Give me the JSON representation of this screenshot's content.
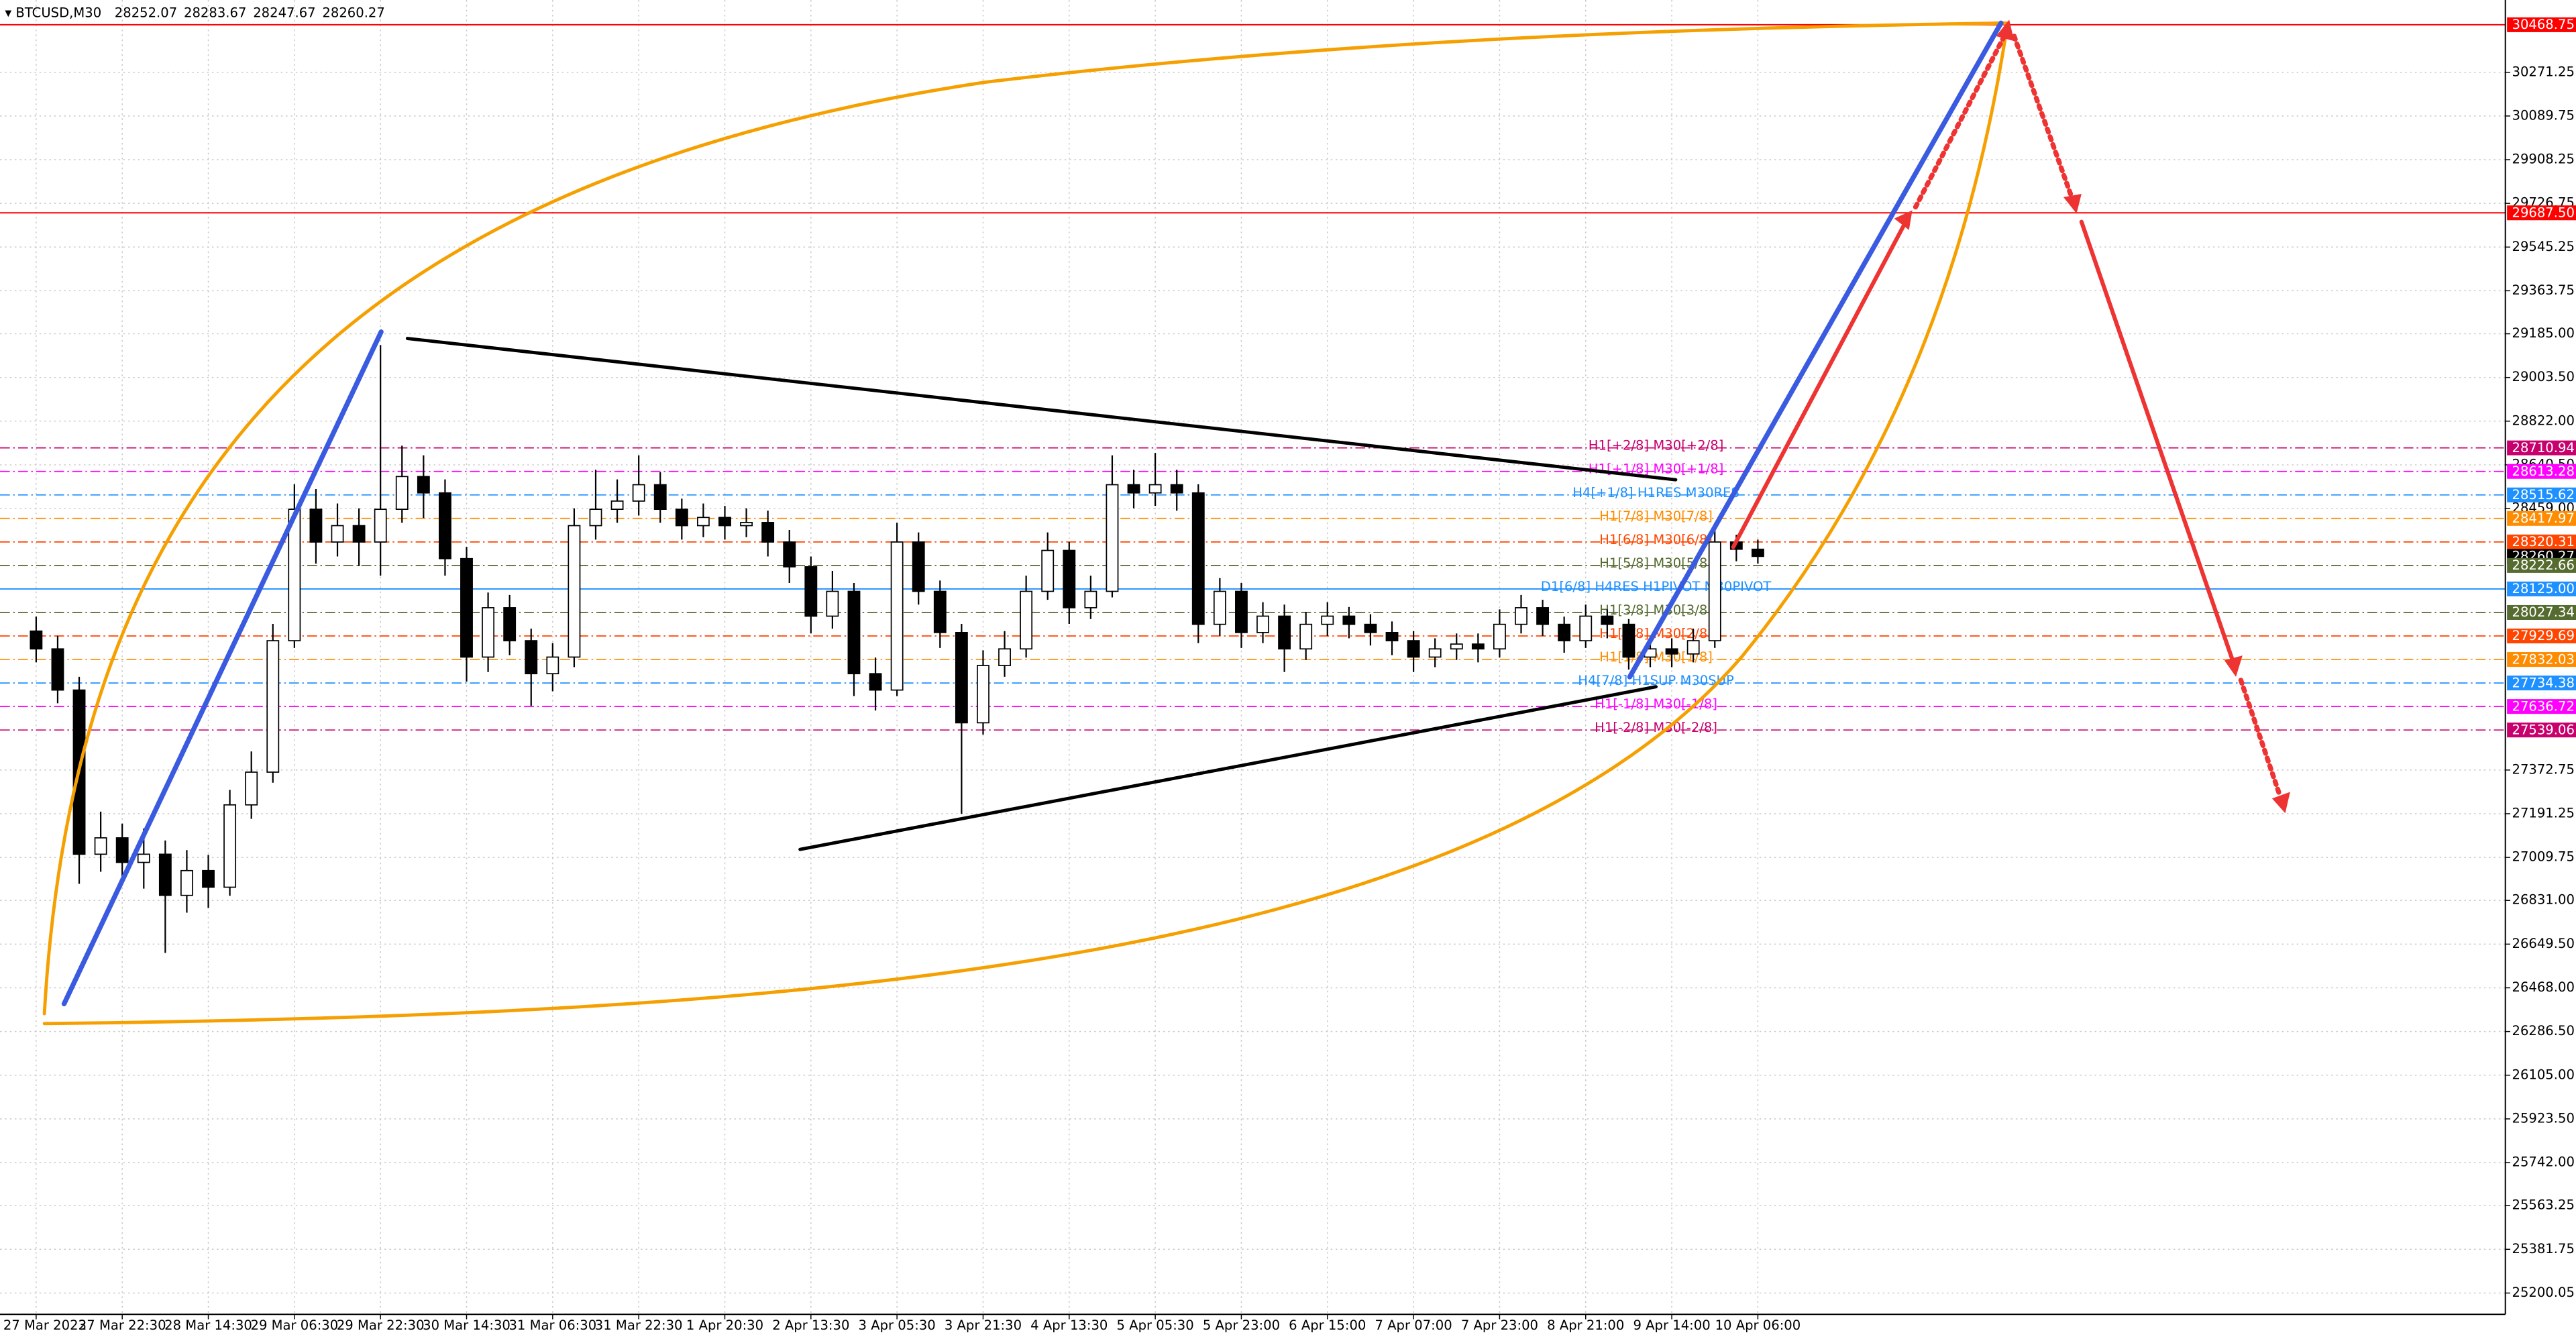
{
  "chart_data": {
    "type": "candlestick",
    "title": "BTCUSD,M30",
    "header_ohlc": [
      28252.07,
      28283.67,
      28247.67,
      28260.27
    ],
    "categories": [
      "27 Mar 2023",
      null,
      null,
      null,
      "27 Mar 22:30",
      null,
      null,
      null,
      "28 Mar 14:30",
      null,
      null,
      null,
      "29 Mar 06:30",
      null,
      null,
      null,
      "29 Mar 22:30",
      null,
      null,
      null,
      "30 Mar 14:30",
      null,
      null,
      null,
      "31 Mar 06:30",
      null,
      null,
      null,
      "31 Mar 22:30",
      null,
      null,
      null,
      "1 Apr 20:30",
      null,
      null,
      null,
      "2 Apr 13:30",
      null,
      null,
      null,
      "3 Apr 05:30",
      null,
      null,
      null,
      "3 Apr 21:30",
      null,
      null,
      null,
      "4 Apr 13:30",
      null,
      null,
      null,
      "5 Apr 05:30",
      null,
      null,
      null,
      "5 Apr 23:00",
      null,
      null,
      null,
      "6 Apr 15:00",
      null,
      null,
      null,
      "7 Apr 07:00",
      null,
      null,
      null,
      "7 Apr 23:00",
      null,
      null,
      null,
      "8 Apr 21:00",
      null,
      null,
      null,
      "9 Apr 14:00",
      null,
      null,
      null,
      "10 Apr 06:00"
    ],
    "open": [
      27950,
      27876,
      27705,
      27023,
      27091,
      26989,
      27023,
      26852,
      26955,
      26886,
      27228,
      27364,
      27910,
      28456,
      28320,
      28388,
      28320,
      28456,
      28592,
      28524,
      28251,
      27842,
      28047,
      27910,
      27773,
      27842,
      28388,
      28456,
      28490,
      28558,
      28456,
      28388,
      28422,
      28388,
      28401,
      28320,
      28217,
      28012,
      28115,
      27773,
      27705,
      28320,
      28115,
      27944,
      27569,
      27807,
      27876,
      28115,
      28285,
      28047,
      28115,
      28558,
      28524,
      28558,
      28524,
      27978,
      28115,
      27944,
      28012,
      27876,
      27978,
      28012,
      27978,
      27944,
      27910,
      27842,
      27876,
      27896,
      27876,
      27978,
      28047,
      27978,
      27910,
      28012,
      27978,
      27842,
      27876,
      27855,
      27910,
      28320,
      28290
    ],
    "high": [
      28010,
      27930,
      27760,
      27200,
      27150,
      27130,
      27080,
      27040,
      27020,
      27290,
      27450,
      27980,
      28560,
      28540,
      28480,
      28460,
      29138,
      28720,
      28680,
      28580,
      28300,
      28110,
      28100,
      27960,
      27900,
      28460,
      28620,
      28580,
      28680,
      28610,
      28500,
      28480,
      28470,
      28460,
      28450,
      28370,
      28260,
      28200,
      28150,
      27840,
      28400,
      28360,
      28160,
      27980,
      27870,
      27950,
      28180,
      28360,
      28320,
      28180,
      28680,
      28620,
      28690,
      28620,
      28560,
      28170,
      28150,
      28070,
      28060,
      28030,
      28070,
      28050,
      28020,
      27990,
      27950,
      27920,
      27940,
      27940,
      28040,
      28100,
      28080,
      28010,
      28060,
      28040,
      28000,
      27920,
      27920,
      27960,
      28400,
      28350,
      28330
    ],
    "low": [
      27820,
      27650,
      26900,
      26950,
      26900,
      26880,
      26613,
      26780,
      26800,
      26850,
      27170,
      27320,
      27880,
      28230,
      28260,
      28220,
      28180,
      28400,
      28420,
      28180,
      27740,
      27780,
      27850,
      27640,
      27700,
      27800,
      28330,
      28400,
      28430,
      28400,
      28330,
      28340,
      28330,
      28340,
      28260,
      28150,
      27940,
      27960,
      27680,
      27620,
      27680,
      28060,
      27880,
      27191,
      27520,
      27760,
      27840,
      28080,
      27980,
      28000,
      28090,
      28460,
      28470,
      28450,
      27900,
      27930,
      27880,
      27900,
      27780,
      27830,
      27930,
      27920,
      27890,
      27850,
      27780,
      27800,
      27830,
      27820,
      27840,
      27940,
      27930,
      27860,
      27880,
      27920,
      27790,
      27800,
      27800,
      27820,
      27880,
      28240,
      28230
    ],
    "close": [
      27876,
      27705,
      27023,
      27091,
      26989,
      27023,
      26852,
      26955,
      26886,
      27228,
      27364,
      27910,
      28456,
      28320,
      28388,
      28320,
      28456,
      28592,
      28524,
      28251,
      27842,
      28047,
      27910,
      27773,
      27842,
      28388,
      28456,
      28490,
      28558,
      28456,
      28388,
      28422,
      28388,
      28401,
      28320,
      28217,
      28012,
      28115,
      27773,
      27705,
      28320,
      28115,
      27944,
      27569,
      27807,
      27876,
      28115,
      28285,
      28047,
      28115,
      28558,
      28524,
      28558,
      28524,
      27978,
      28115,
      27944,
      28012,
      27876,
      27978,
      28012,
      27978,
      27944,
      27910,
      27842,
      27876,
      27896,
      27876,
      27978,
      28047,
      27978,
      27910,
      28012,
      27978,
      27842,
      27876,
      27855,
      27910,
      28320,
      28290,
      28260.27
    ],
    "ylim": [
      25111.5,
      30571.6
    ],
    "yticks": [
      30271.25,
      30089.75,
      29908.25,
      29726.75,
      29545.25,
      29363.75,
      {
        "value": 29185,
        "label": "29185.00"
      },
      {
        "value": 29003.5,
        "label": "29003.50"
      },
      {
        "value": 28822,
        "label": "28822.00"
      },
      {
        "value": 28640.5,
        "label": "28640.50"
      },
      {
        "value": 28459,
        "label": "28459.00"
      },
      27372.75,
      27191.25,
      27009.75,
      {
        "value": 26831,
        "label": "26831.00"
      },
      {
        "value": 26649.5,
        "label": "26649.50"
      },
      {
        "value": 26468,
        "label": "26468.00"
      },
      {
        "value": 26286.5,
        "label": "26286.50"
      },
      {
        "value": 26105,
        "label": "26105.00"
      },
      {
        "value": 25923.5,
        "label": "25923.50"
      },
      {
        "value": 25742,
        "label": "25742.00"
      },
      25563.25,
      25381.75,
      25200.05
    ],
    "grid": true,
    "levels": [
      {
        "value": 30468.75,
        "label": "30468.75",
        "color": "#ff0000",
        "style": "solid"
      },
      {
        "value": 29687.5,
        "label": "29687.50",
        "color": "#ff0000",
        "style": "solid"
      },
      {
        "name": "H1[+2/8] M30[+2/8]",
        "value": 28710.94,
        "label": "28710.94",
        "color": "#c8006e",
        "style": "dashdot"
      },
      {
        "name": "H1[+1/8] M30[+1/8]",
        "value": 28613.28,
        "label": "28613.28",
        "color": "#ff00ff",
        "style": "dashdot"
      },
      {
        "name": "H4[+1/8] H1RES M30RES",
        "value": 28515.62,
        "label": "28515.62",
        "color": "#1e90ff",
        "style": "dashdot"
      },
      {
        "name": "H1[7/8] M30[7/8]",
        "value": 28417.97,
        "label": "28417.97",
        "color": "#ff8c00",
        "style": "dashdot"
      },
      {
        "name": "H1[6/8] M30[6/8]",
        "value": 28320.31,
        "label": "28320.31",
        "color": "#ff4500",
        "style": "dashdot"
      },
      {
        "value": 28260.27,
        "label": "28260.27",
        "color": "#000000",
        "style": "none"
      },
      {
        "name": "H1[5/8] M30[5/8]",
        "value": 28222.66,
        "label": "28222.66",
        "color": "#556b2f",
        "style": "dashdot"
      },
      {
        "name": "D1[6/8] H4RES H1PIVOT M30PIVOT",
        "value": 28125.0,
        "label": "28125.00",
        "color": "#1e90ff",
        "style": "solid"
      },
      {
        "name": "H1[3/8] M30[3/8]",
        "value": 28027.34,
        "label": "28027.34",
        "color": "#556b2f",
        "style": "dashdot"
      },
      {
        "name": "H1[2/8] M30[2/8]",
        "value": 27929.69,
        "label": "27929.69",
        "color": "#ff4500",
        "style": "dashdot"
      },
      {
        "name": "H1[1/8] M30[1/8]",
        "value": 27832.03,
        "label": "27832.03",
        "color": "#ff8c00",
        "style": "dashdot"
      },
      {
        "name": "H4[7/8] H1SUP M30SUP",
        "value": 27734.38,
        "label": "27734.38",
        "color": "#1e90ff",
        "style": "dashdot"
      },
      {
        "name": "H1[-1/8] M30[-1/8]",
        "value": 27636.72,
        "label": "27636.72",
        "color": "#ff00ff",
        "style": "dashdot"
      },
      {
        "name": "H1[-2/8] M30[-2/8]",
        "value": 27539.06,
        "label": "27539.06",
        "color": "#c8006e",
        "style": "dashdot"
      }
    ]
  }
}
